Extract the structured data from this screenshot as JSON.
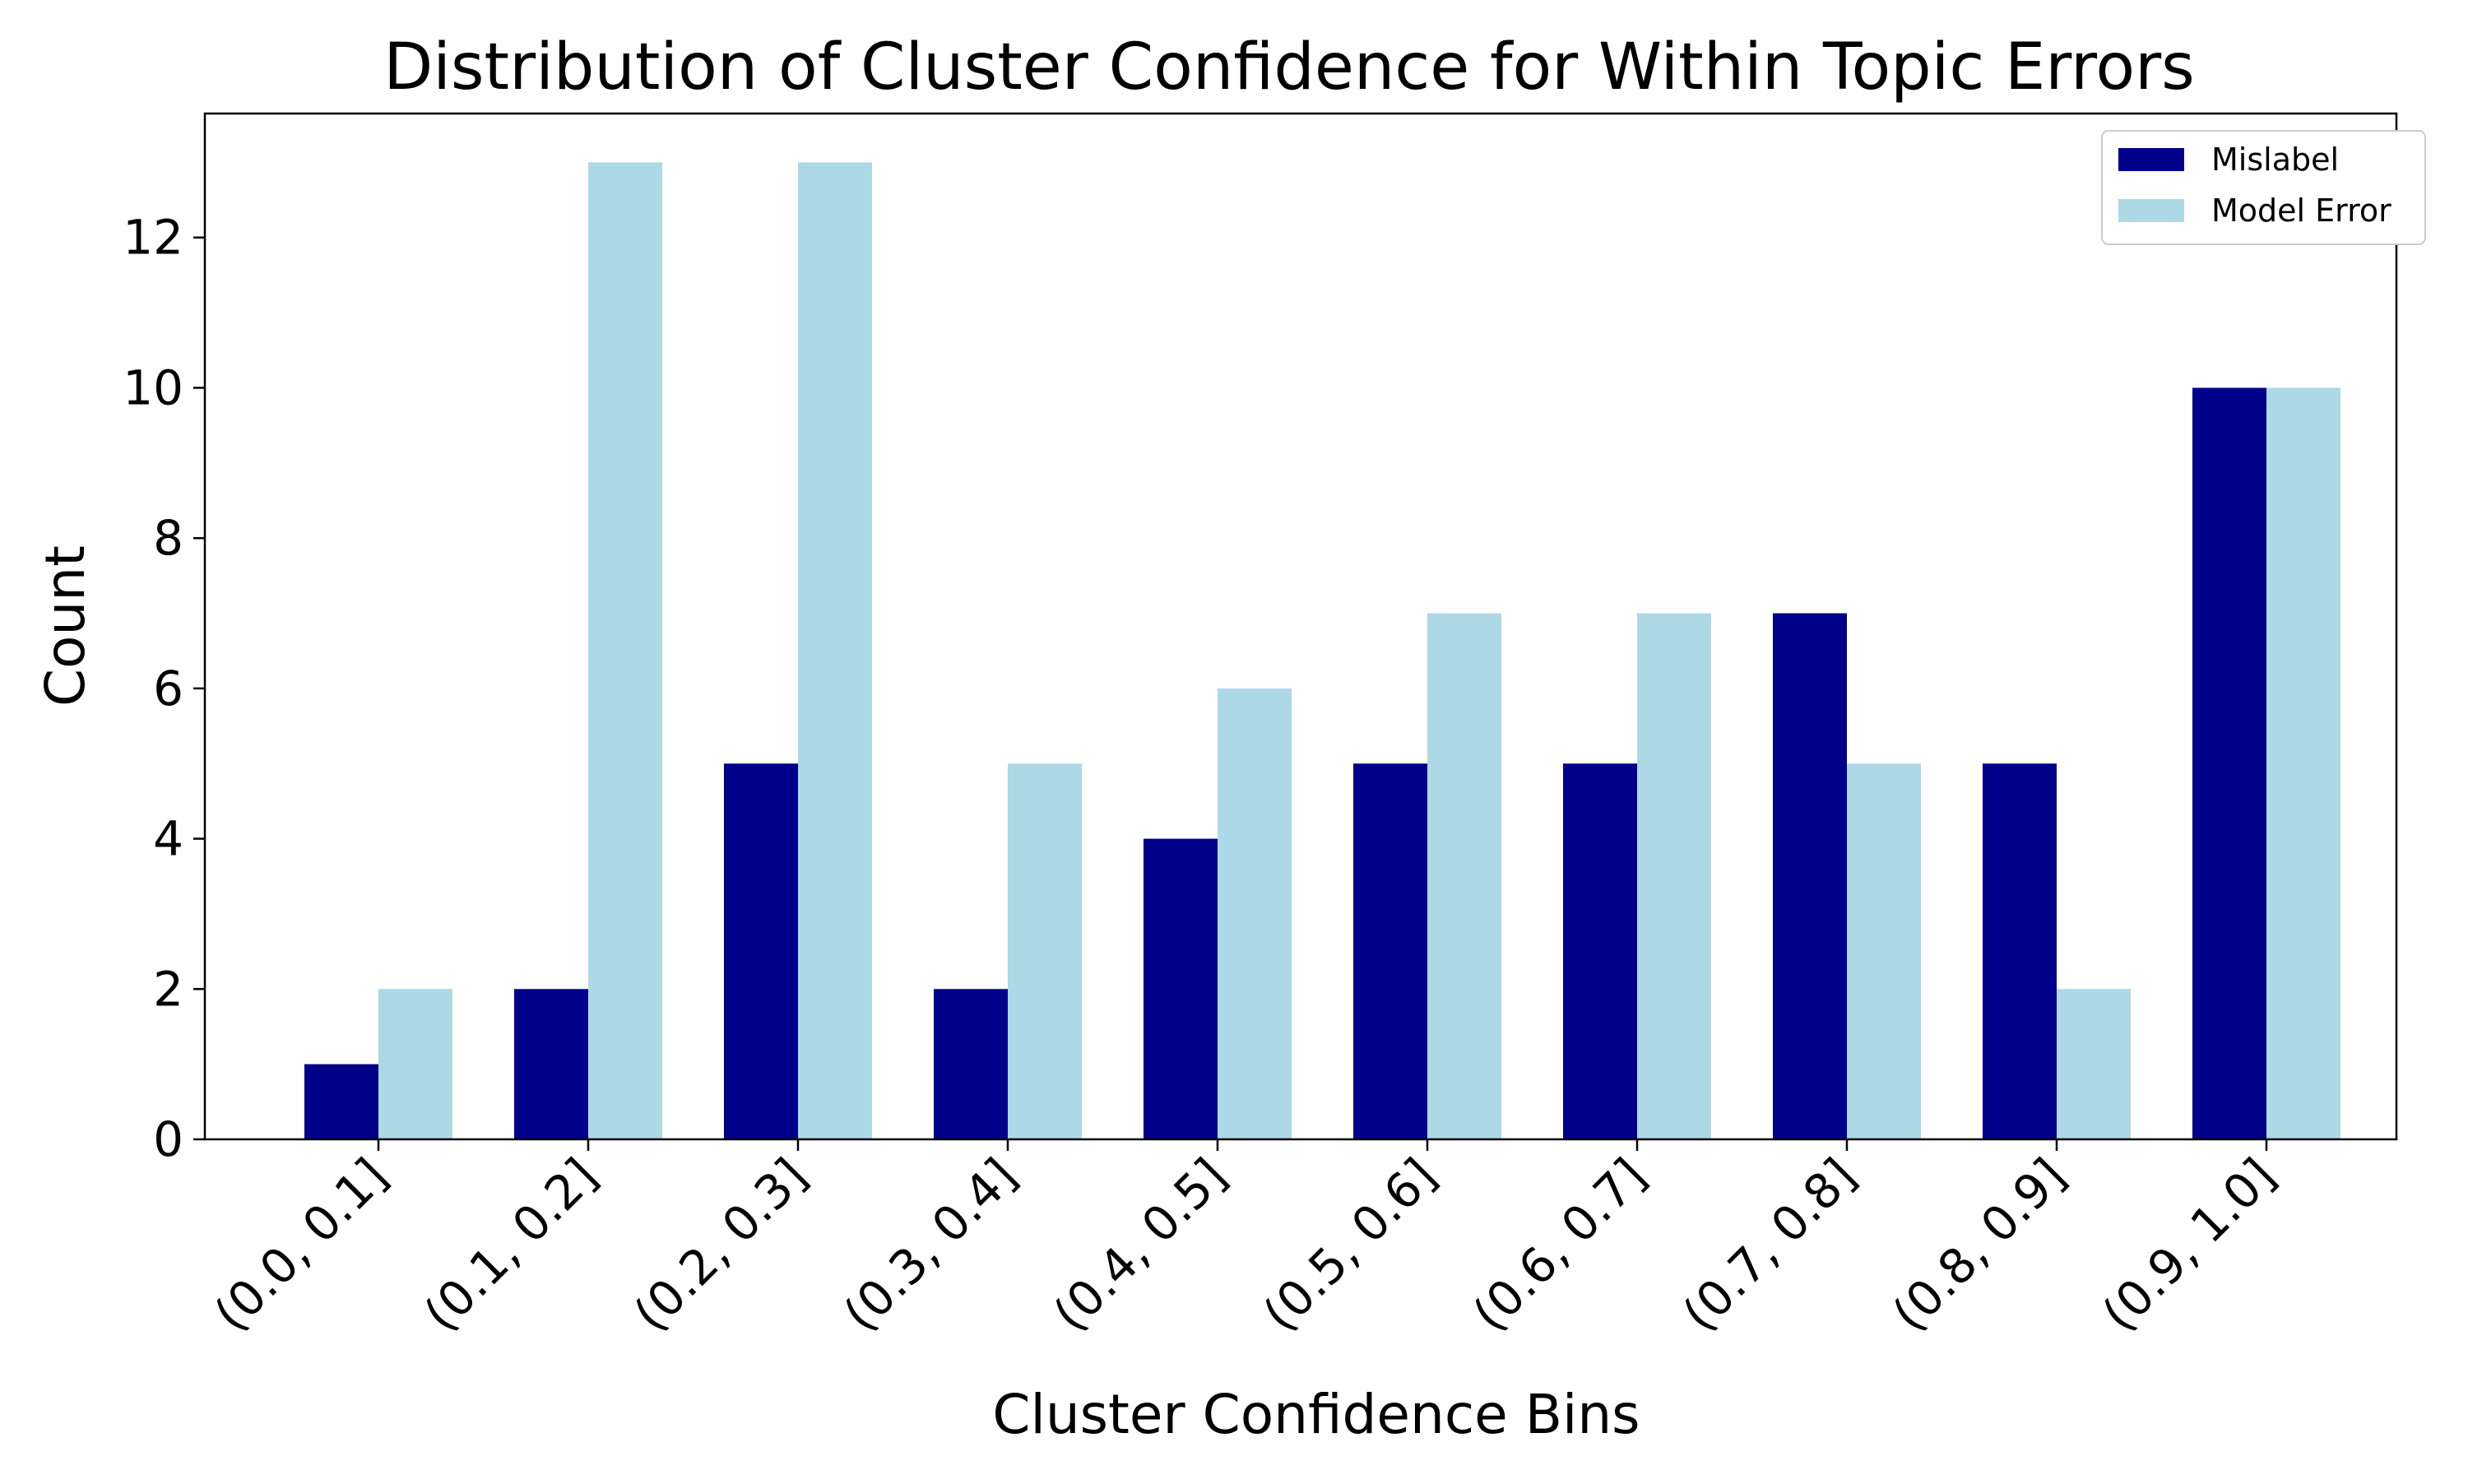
{
  "colors": {
    "background": "#ffffff",
    "axis": "#000000",
    "legend_border": "#cccccc"
  },
  "chart_data": {
    "type": "bar",
    "title": "Distribution of Cluster Confidence for Within Topic Errors",
    "xlabel": "Cluster Confidence Bins",
    "ylabel": "Count",
    "categories": [
      "(0.0, 0.1]",
      "(0.1, 0.2]",
      "(0.2, 0.3]",
      "(0.3, 0.4]",
      "(0.4, 0.5]",
      "(0.5, 0.6]",
      "(0.6, 0.7]",
      "(0.7, 0.8]",
      "(0.8, 0.9]",
      "(0.9, 1.0]"
    ],
    "series": [
      {
        "name": "Mislabel",
        "color": "#00008b",
        "values": [
          1,
          2,
          5,
          2,
          4,
          5,
          5,
          7,
          5,
          10
        ]
      },
      {
        "name": "Model Error",
        "color": "#add8e6",
        "values": [
          2,
          13,
          13,
          5,
          6,
          7,
          7,
          5,
          2,
          10
        ]
      }
    ],
    "ylim": [
      0,
      13.65
    ],
    "yticks": [
      0,
      2,
      4,
      6,
      8,
      10,
      12
    ],
    "grid": false,
    "legend_position": "top-right"
  }
}
